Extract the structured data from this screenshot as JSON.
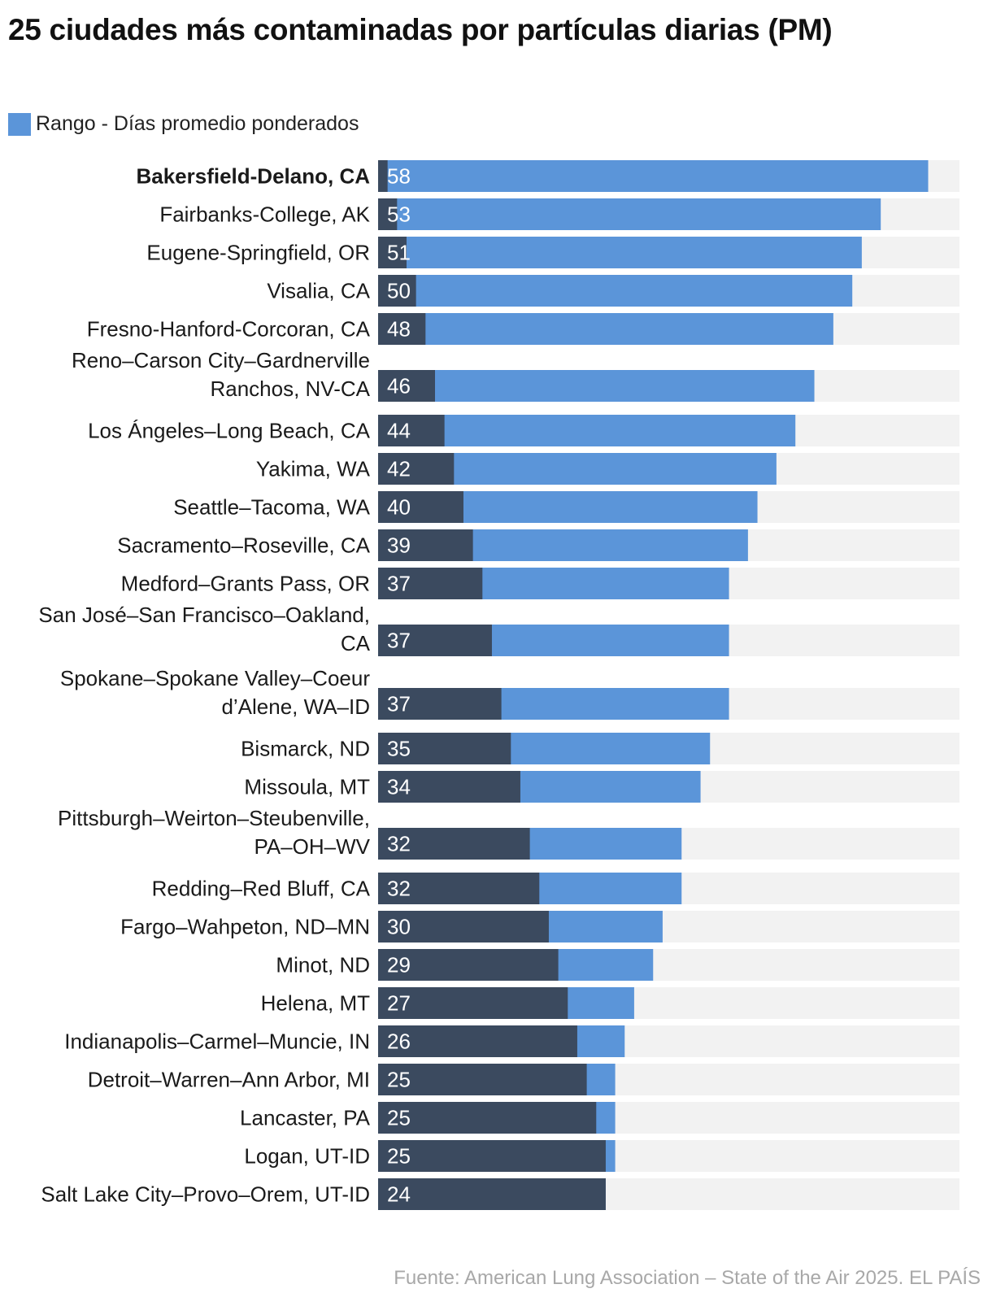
{
  "colors": {
    "track": "#f2f2f2",
    "range": "#5b95d9",
    "base": "#3b4a5f",
    "value_text": "#ffffff",
    "label_text": "#1a1a1a"
  },
  "chart_data": {
    "type": "bar",
    "orientation": "horizontal",
    "stacked": true,
    "title": "25 ciudades más contaminadas por partículas diarias (PM)",
    "legend": [
      "Rango - Días promedio ponderados"
    ],
    "legend_position": "top-left",
    "xlim": [
      0,
      61.3
    ],
    "highlight_index": 0,
    "categories": [
      [
        "Bakersfield-Delano, CA"
      ],
      [
        "Fairbanks-College, AK"
      ],
      [
        "Eugene-Springfield, OR"
      ],
      [
        "Visalia, CA"
      ],
      [
        "Fresno-Hanford-Corcoran, CA"
      ],
      [
        "Reno–Carson City–Gardnerville",
        "Ranchos, NV-CA"
      ],
      [
        "Los Ángeles–Long Beach, CA"
      ],
      [
        "Yakima, WA"
      ],
      [
        "Seattle–Tacoma, WA"
      ],
      [
        "Sacramento–Roseville, CA"
      ],
      [
        "Medford–Grants Pass, OR"
      ],
      [
        "San José–San Francisco–Oakland,",
        "CA"
      ],
      [
        "Spokane–Spokane Valley–Coeur",
        "d’Alene, WA–ID"
      ],
      [
        "Bismarck, ND"
      ],
      [
        "Missoula, MT"
      ],
      [
        "Pittsburgh–Weirton–Steubenville,",
        "PA–OH–WV"
      ],
      [
        "Redding–Red Bluff, CA"
      ],
      [
        "Fargo–Wahpeton, ND–MN"
      ],
      [
        "Minot, ND"
      ],
      [
        "Helena, MT"
      ],
      [
        "Indianapolis–Carmel–Muncie, IN"
      ],
      [
        "Detroit–Warren–Ann Arbor, MI"
      ],
      [
        "Lancaster, PA"
      ],
      [
        "Logan, UT-ID"
      ],
      [
        "Salt Lake City–Provo–Orem, UT-ID"
      ]
    ],
    "values": [
      58,
      53,
      51,
      50,
      48,
      46,
      44,
      42,
      40,
      39,
      37,
      37,
      37,
      35,
      34,
      32,
      32,
      30,
      29,
      27,
      26,
      25,
      25,
      25,
      24
    ],
    "value_labels": [
      "58",
      "53",
      "51",
      "50",
      "48",
      "46",
      "44",
      "42",
      "40",
      "39",
      "37",
      "37",
      "37",
      "35",
      "34",
      "32",
      "32",
      "30",
      "29",
      "27",
      "26",
      "25",
      "25",
      "25",
      "24"
    ],
    "base_segment": [
      1,
      2,
      3,
      4,
      5,
      6,
      7,
      8,
      9,
      10,
      11,
      12,
      13,
      14,
      15,
      16,
      17,
      18,
      19,
      20,
      21,
      22,
      23,
      24,
      24
    ]
  },
  "source": "Fuente: American Lung Association – State of the Air 2025. EL PAÍS"
}
